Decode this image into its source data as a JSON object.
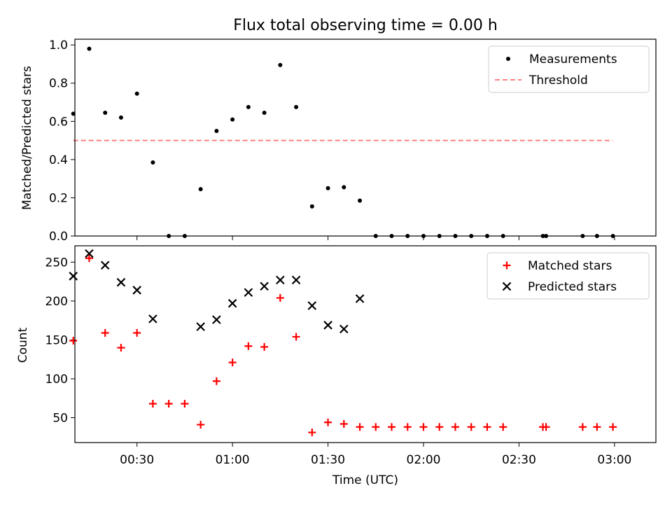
{
  "chart_data": {
    "title": "Flux total observing time = 0.00 h",
    "xlabel": "Time (UTC)",
    "x_unit": "minutes after 00:00 UTC",
    "xlim": [
      10.5,
      193
    ],
    "x_ticks": [
      {
        "value": 30,
        "label": "00:30"
      },
      {
        "value": 60,
        "label": "01:00"
      },
      {
        "value": 90,
        "label": "01:30"
      },
      {
        "value": 120,
        "label": "02:00"
      },
      {
        "value": 150,
        "label": "02:30"
      },
      {
        "value": 180,
        "label": "03:00"
      }
    ],
    "panels": [
      {
        "type": "scatter",
        "ylabel": "Matched/Predicted stars",
        "ylim": [
          0,
          1.03
        ],
        "y_ticks": [
          {
            "value": 0.0,
            "label": "0.0"
          },
          {
            "value": 0.2,
            "label": "0.2"
          },
          {
            "value": 0.4,
            "label": "0.4"
          },
          {
            "value": 0.6,
            "label": "0.6"
          },
          {
            "value": 0.8,
            "label": "0.8"
          },
          {
            "value": 1.0,
            "label": "1.0"
          }
        ],
        "legend_position": "top-right",
        "series": [
          {
            "name": "Measurements",
            "marker": "dot",
            "color": "#000000",
            "x": [
              10,
              15,
              20,
              25,
              30,
              35,
              40,
              45,
              50,
              55,
              60,
              65,
              70,
              75,
              80,
              85,
              90,
              95,
              100,
              105,
              110,
              115,
              120,
              125,
              130,
              135,
              140,
              145,
              157.5,
              158.5,
              170,
              174.5,
              179.5
            ],
            "y": [
              0.64,
              0.98,
              0.645,
              0.62,
              0.745,
              0.385,
              0.0,
              0.0,
              0.245,
              0.55,
              0.61,
              0.675,
              0.645,
              0.895,
              0.675,
              0.155,
              0.25,
              0.255,
              0.185,
              0.0,
              0.0,
              0.0,
              0.0,
              0.0,
              0.0,
              0.0,
              0.0,
              0.0,
              0.0,
              0.0,
              0.0,
              0.0,
              0.0
            ]
          },
          {
            "name": "Threshold",
            "type": "line",
            "style": "dashed",
            "color": "#ff7f7f",
            "x": [
              10,
              179.5
            ],
            "y": [
              0.5,
              0.5
            ]
          }
        ]
      },
      {
        "type": "scatter",
        "ylabel": "Count",
        "ylim": [
          18,
          271
        ],
        "y_ticks": [
          {
            "value": 50,
            "label": "50"
          },
          {
            "value": 100,
            "label": "100"
          },
          {
            "value": 150,
            "label": "150"
          },
          {
            "value": 200,
            "label": "200"
          },
          {
            "value": 250,
            "label": "250"
          }
        ],
        "legend_position": "top-right",
        "series": [
          {
            "name": "Matched stars",
            "marker": "plus",
            "color": "#ff0000",
            "x": [
              10,
              15,
              20,
              25,
              30,
              35,
              40,
              45,
              50,
              55,
              60,
              65,
              70,
              75,
              80,
              85,
              90,
              95,
              100,
              105,
              110,
              115,
              120,
              125,
              130,
              135,
              140,
              145,
              157.5,
              158.5,
              170,
              174.5,
              179.5
            ],
            "y": [
              149,
              255,
              159,
              140,
              159,
              68,
              68,
              68,
              41,
              97,
              121,
              142,
              141,
              204,
              154,
              31,
              44,
              42,
              38,
              38,
              38,
              38,
              38,
              38,
              38,
              38,
              38,
              38,
              38,
              38,
              38,
              38,
              38
            ]
          },
          {
            "name": "Predicted stars",
            "marker": "x",
            "color": "#000000",
            "x": [
              10,
              15,
              20,
              25,
              30,
              35,
              50,
              55,
              60,
              65,
              70,
              75,
              80,
              85,
              90,
              95,
              100
            ],
            "y": [
              232,
              261,
              246,
              224,
              214,
              177,
              167,
              176,
              197,
              211,
              219,
              227,
              227,
              194,
              169,
              164,
              203
            ]
          }
        ]
      }
    ]
  }
}
